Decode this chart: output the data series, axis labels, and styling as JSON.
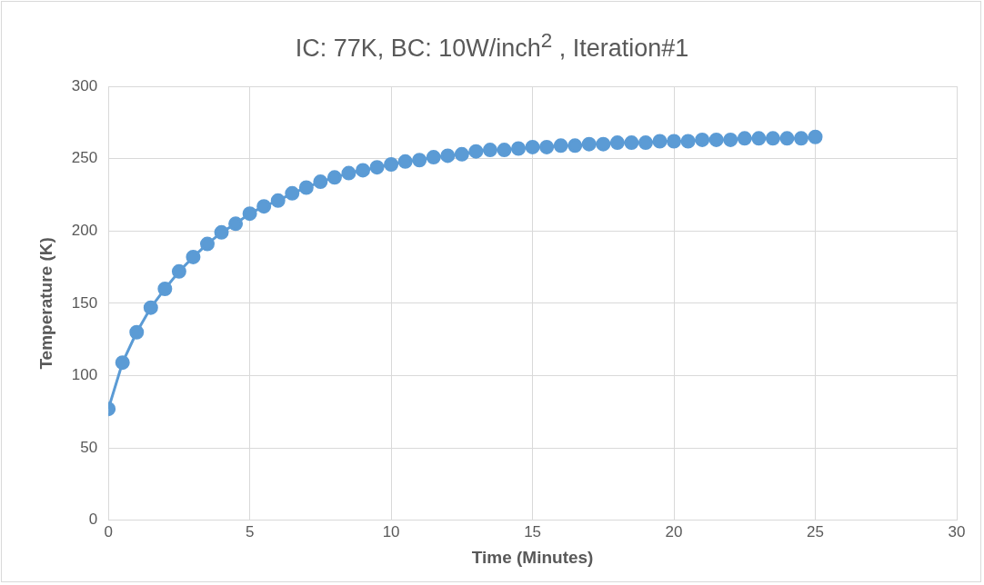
{
  "chart_data": {
    "type": "line",
    "title": "IC: 77K, BC: 10W/inch$^{2}$ , Iteration#1",
    "xlabel": "Time (Minutes)",
    "ylabel": "Temperature (K)",
    "x": [
      0,
      0.5,
      1,
      1.5,
      2,
      2.5,
      3,
      3.5,
      4,
      4.5,
      5,
      5.5,
      6,
      6.5,
      7,
      7.5,
      8,
      8.5,
      9,
      9.5,
      10,
      10.5,
      11,
      11.5,
      12,
      12.5,
      13,
      13.5,
      14,
      14.5,
      15,
      15.5,
      16,
      16.5,
      17,
      17.5,
      18,
      18.5,
      19,
      19.5,
      20,
      20.5,
      21,
      21.5,
      22,
      22.5,
      23,
      23.5,
      24,
      24.5,
      25
    ],
    "series": [
      {
        "color": "#5b9bd5",
        "values": [
          77,
          109,
          130,
          147,
          160,
          172,
          182,
          191,
          199,
          205,
          212,
          217,
          221,
          226,
          230,
          234,
          237,
          240,
          242,
          244,
          246,
          248,
          249,
          251,
          252,
          253,
          255,
          256,
          256,
          257,
          258,
          258,
          259,
          259,
          260,
          260,
          261,
          261,
          261,
          262,
          262,
          262,
          263,
          263,
          263,
          264,
          264,
          264,
          264,
          264,
          265
        ]
      }
    ],
    "xlim": [
      0,
      30
    ],
    "xticks": [
      0,
      5,
      10,
      15,
      20,
      25,
      30
    ],
    "ylim": [
      0,
      300
    ],
    "yticks": [
      0,
      50,
      100,
      150,
      200,
      250,
      300
    ],
    "grid": true,
    "marker": "circle",
    "line_style": "solid"
  }
}
